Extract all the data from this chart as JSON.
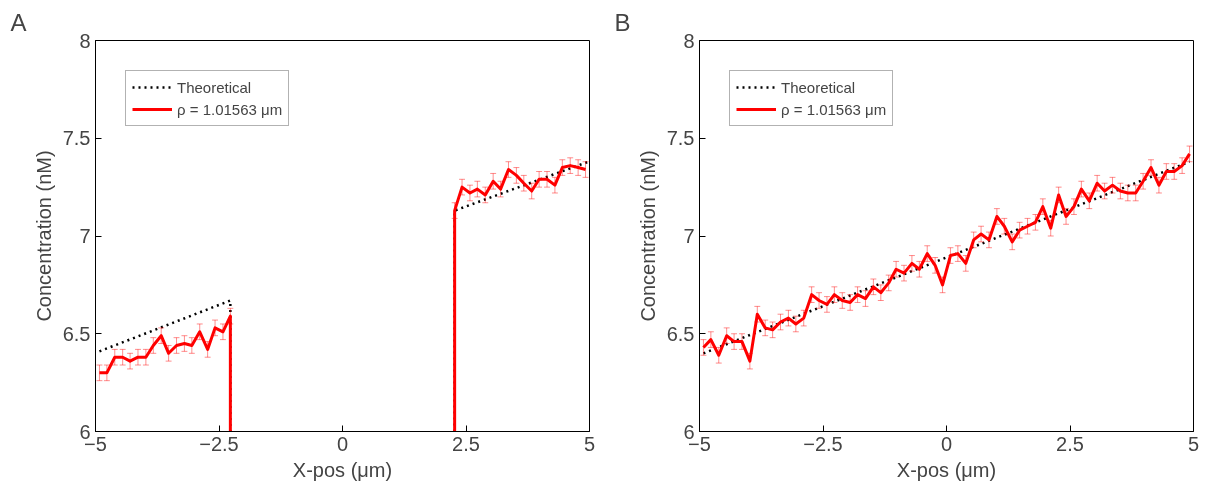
{
  "chart_data": [
    {
      "type": "line",
      "title": "A",
      "xlabel": "X-pos (μm)",
      "ylabel": "Concentration (nM)",
      "xlim": [
        -5,
        5
      ],
      "ylim": [
        6,
        8
      ],
      "xticks": [
        -5,
        -2.5,
        0,
        2.5,
        5
      ],
      "yticks": [
        6,
        6.5,
        7,
        7.5,
        8
      ],
      "grid": false,
      "legend": "top left",
      "marker": "none",
      "series": [
        {
          "name": "Theoretical",
          "color": "#000000",
          "line_style": "dotted",
          "x": [
            -4.92,
            -2.27,
            -2.27,
            0,
            2.27,
            2.27,
            4.98
          ],
          "values": [
            6.41,
            6.67,
            6,
            null,
            6,
            7.13,
            7.38
          ]
        },
        {
          "name": "ρ = 1.01563 μm",
          "color": "#ff0000",
          "line_style": "solid",
          "x": [
            -4.92,
            -4.77,
            -4.61,
            -4.45,
            -4.3,
            -4.14,
            -3.98,
            -3.83,
            -3.67,
            -3.52,
            -3.36,
            -3.2,
            -3.05,
            -2.89,
            -2.73,
            -2.58,
            -2.42,
            -2.27,
            -2.27,
            0,
            2.27,
            2.27,
            2.42,
            2.58,
            2.73,
            2.89,
            3.05,
            3.2,
            3.36,
            3.52,
            3.67,
            3.83,
            3.98,
            4.14,
            4.3,
            4.45,
            4.61,
            4.77,
            4.92
          ],
          "values": [
            6.3,
            6.3,
            6.38,
            6.38,
            6.36,
            6.38,
            6.38,
            6.44,
            6.49,
            6.4,
            6.44,
            6.45,
            6.44,
            6.51,
            6.42,
            6.53,
            6.51,
            6.59,
            6,
            null,
            6,
            7.13,
            7.25,
            7.22,
            7.24,
            7.21,
            7.28,
            7.24,
            7.34,
            7.31,
            7.27,
            7.23,
            7.29,
            7.29,
            7.26,
            7.35,
            7.36,
            7.35,
            7.34
          ],
          "errors": [
            0.04,
            0.04,
            0.04,
            0.04,
            0.04,
            0.04,
            0.04,
            0.04,
            0.04,
            0.04,
            0.04,
            0.04,
            0.04,
            0.04,
            0.04,
            0.04,
            0.04,
            0.04,
            null,
            null,
            null,
            0.04,
            0.04,
            0.04,
            0.04,
            0.04,
            0.04,
            0.04,
            0.04,
            0.04,
            0.04,
            0.04,
            0.04,
            0.04,
            0.04,
            0.04,
            0.04,
            0.04,
            0.04
          ]
        }
      ]
    },
    {
      "type": "line",
      "title": "B",
      "xlabel": "X-pos (μm)",
      "ylabel": "Concentration (nM)",
      "xlim": [
        -5,
        5
      ],
      "ylim": [
        6,
        8
      ],
      "xticks": [
        -5,
        -2.5,
        0,
        2.5,
        5
      ],
      "yticks": [
        6,
        6.5,
        7,
        7.5,
        8
      ],
      "grid": false,
      "legend": "top left",
      "marker": "none",
      "series": [
        {
          "name": "Theoretical",
          "color": "#000000",
          "line_style": "dotted",
          "x": [
            -4.92,
            4.92
          ],
          "values": [
            6.4,
            7.38
          ]
        },
        {
          "name": "ρ = 1.01563 μm",
          "color": "#ff0000",
          "line_style": "solid",
          "x": [
            -4.92,
            -4.77,
            -4.61,
            -4.45,
            -4.3,
            -4.14,
            -3.98,
            -3.83,
            -3.67,
            -3.52,
            -3.36,
            -3.2,
            -3.05,
            -2.89,
            -2.73,
            -2.58,
            -2.42,
            -2.27,
            -2.11,
            -1.95,
            -1.8,
            -1.64,
            -1.48,
            -1.33,
            -1.17,
            -1.02,
            -0.86,
            -0.7,
            -0.55,
            -0.39,
            -0.23,
            -0.08,
            0.08,
            0.23,
            0.39,
            0.55,
            0.7,
            0.86,
            1.02,
            1.17,
            1.33,
            1.48,
            1.64,
            1.8,
            1.95,
            2.11,
            2.27,
            2.42,
            2.58,
            2.73,
            2.89,
            3.05,
            3.2,
            3.36,
            3.52,
            3.67,
            3.83,
            3.98,
            4.14,
            4.3,
            4.45,
            4.61,
            4.77,
            4.92
          ],
          "values": [
            6.43,
            6.47,
            6.39,
            6.49,
            6.46,
            6.46,
            6.36,
            6.6,
            6.53,
            6.52,
            6.56,
            6.58,
            6.55,
            6.58,
            6.7,
            6.67,
            6.65,
            6.7,
            6.67,
            6.66,
            6.7,
            6.68,
            6.74,
            6.71,
            6.76,
            6.83,
            6.81,
            6.86,
            6.83,
            6.91,
            6.85,
            6.75,
            6.9,
            6.91,
            6.86,
            6.98,
            7.01,
            6.98,
            7.1,
            7.05,
            6.97,
            7.03,
            7.05,
            7.07,
            7.15,
            7.04,
            7.21,
            7.1,
            7.15,
            7.24,
            7.18,
            7.27,
            7.23,
            7.26,
            7.23,
            7.22,
            7.22,
            7.28,
            7.35,
            7.26,
            7.33,
            7.33,
            7.36,
            7.42
          ],
          "errors": [
            0.04,
            0.04,
            0.04,
            0.04,
            0.04,
            0.04,
            0.04,
            0.04,
            0.04,
            0.04,
            0.04,
            0.04,
            0.04,
            0.04,
            0.04,
            0.04,
            0.04,
            0.04,
            0.04,
            0.04,
            0.04,
            0.04,
            0.04,
            0.04,
            0.04,
            0.04,
            0.04,
            0.04,
            0.04,
            0.04,
            0.04,
            0.04,
            0.04,
            0.04,
            0.04,
            0.04,
            0.04,
            0.04,
            0.04,
            0.04,
            0.04,
            0.04,
            0.04,
            0.04,
            0.04,
            0.04,
            0.04,
            0.04,
            0.04,
            0.04,
            0.04,
            0.04,
            0.04,
            0.04,
            0.04,
            0.04,
            0.04,
            0.04,
            0.04,
            0.04,
            0.04,
            0.04,
            0.04,
            0.04
          ]
        }
      ]
    }
  ]
}
